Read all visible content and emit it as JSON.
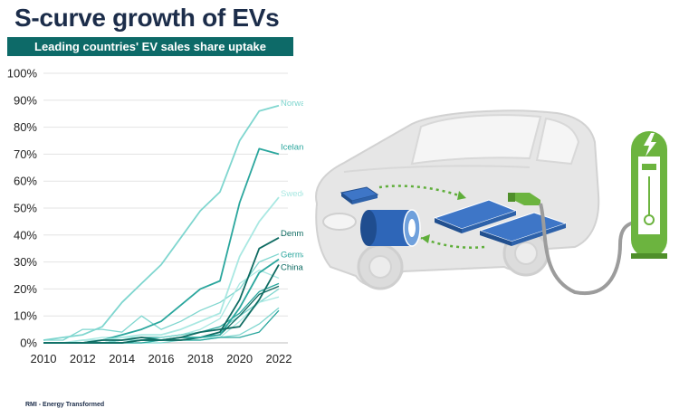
{
  "header": {
    "title": "S-curve growth of EVs",
    "subtitle": "Leading countries' EV sales share uptake"
  },
  "footer": {
    "source": "RMI - Energy Transformed"
  },
  "colors": {
    "title": "#1c2d4a",
    "banner": "#0d6a68",
    "light_teal": "#7fd6cf",
    "mid_teal": "#2aa69d",
    "dark_teal": "#0f6b62",
    "battery_blue": "#2e66b8",
    "charger_green": "#6cb43f",
    "car_gray": "#e6e6e6"
  },
  "chart_data": {
    "type": "line",
    "title": "Leading countries' EV sales share uptake",
    "xlabel": "",
    "ylabel": "",
    "x": [
      2010,
      2011,
      2012,
      2013,
      2014,
      2015,
      2016,
      2017,
      2018,
      2019,
      2020,
      2021,
      2022
    ],
    "xticks": [
      "2010",
      "2012",
      "2014",
      "2016",
      "2018",
      "2020",
      "2022"
    ],
    "yticks": [
      "0%",
      "10%",
      "20%",
      "30%",
      "40%",
      "50%",
      "60%",
      "70%",
      "80%",
      "90%",
      "100%"
    ],
    "xlim": [
      2010,
      2022
    ],
    "ylim": [
      0,
      100
    ],
    "grid": "horizontal",
    "series": [
      {
        "name": "Norway",
        "label": "Norway",
        "color": "#7fd6cf",
        "values": [
          1,
          2,
          3,
          6,
          15,
          22,
          29,
          39,
          49,
          56,
          75,
          86,
          88
        ]
      },
      {
        "name": "Iceland",
        "label": "Iceland",
        "color": "#2aa69d",
        "values": [
          0,
          0,
          0,
          1,
          3,
          5,
          8,
          14,
          20,
          23,
          52,
          72,
          70
        ]
      },
      {
        "name": "Sweden",
        "label": "Sweden",
        "color": "#a9e8e2",
        "values": [
          0,
          0,
          1,
          1,
          2,
          3,
          3,
          5,
          8,
          11,
          32,
          45,
          54
        ]
      },
      {
        "name": "Denmark",
        "label": "Denmark",
        "color": "#0f6b62",
        "values": [
          0,
          0,
          0,
          1,
          1,
          2,
          1,
          1,
          2,
          4,
          16,
          35,
          39
        ]
      },
      {
        "name": "Germany",
        "label": "Germany",
        "color": "#2aa69d",
        "values": [
          0,
          0,
          0,
          0,
          0,
          1,
          1,
          2,
          2,
          3,
          13,
          26,
          31
        ]
      },
      {
        "name": "China",
        "label": "China",
        "color": "#0f6b62",
        "values": [
          0,
          0,
          0,
          0,
          0,
          1,
          1,
          2,
          4,
          5,
          6,
          16,
          29
        ]
      },
      {
        "name": "",
        "label": "",
        "color": "#7fd6cf",
        "values": [
          1,
          1,
          5,
          5,
          4,
          10,
          5,
          8,
          12,
          15,
          20,
          30,
          33
        ]
      },
      {
        "name": "",
        "label": "",
        "color": "#a9e8e2",
        "values": [
          0,
          0,
          1,
          2,
          2,
          2,
          2,
          3,
          5,
          9,
          22,
          27,
          24
        ]
      },
      {
        "name": "",
        "label": "",
        "color": "#2aa69d",
        "values": [
          0,
          0,
          0,
          0,
          1,
          2,
          2,
          3,
          4,
          6,
          11,
          19,
          22
        ]
      },
      {
        "name": "",
        "label": "",
        "color": "#7fd6cf",
        "values": [
          0,
          0,
          0,
          0,
          1,
          1,
          2,
          3,
          4,
          5,
          10,
          15,
          20
        ]
      },
      {
        "name": "",
        "label": "",
        "color": "#0f6b62",
        "values": [
          0,
          0,
          0,
          0,
          0,
          1,
          1,
          1,
          2,
          3,
          10,
          18,
          21
        ]
      },
      {
        "name": "",
        "label": "",
        "color": "#a9e8e2",
        "values": [
          0,
          0,
          0,
          0,
          0,
          0,
          1,
          1,
          2,
          2,
          8,
          15,
          17
        ]
      },
      {
        "name": "",
        "label": "",
        "color": "#7fd6cf",
        "values": [
          0,
          0,
          0,
          0,
          0,
          0,
          0,
          1,
          1,
          2,
          3,
          7,
          13
        ]
      },
      {
        "name": "",
        "label": "",
        "color": "#2aa69d",
        "values": [
          0,
          0,
          0,
          0,
          0,
          0,
          1,
          1,
          1,
          2,
          2,
          4,
          12
        ]
      }
    ]
  },
  "illustration": {
    "name": "electric car with battery and charger",
    "icons": [
      "lightning-bolt-icon"
    ]
  }
}
